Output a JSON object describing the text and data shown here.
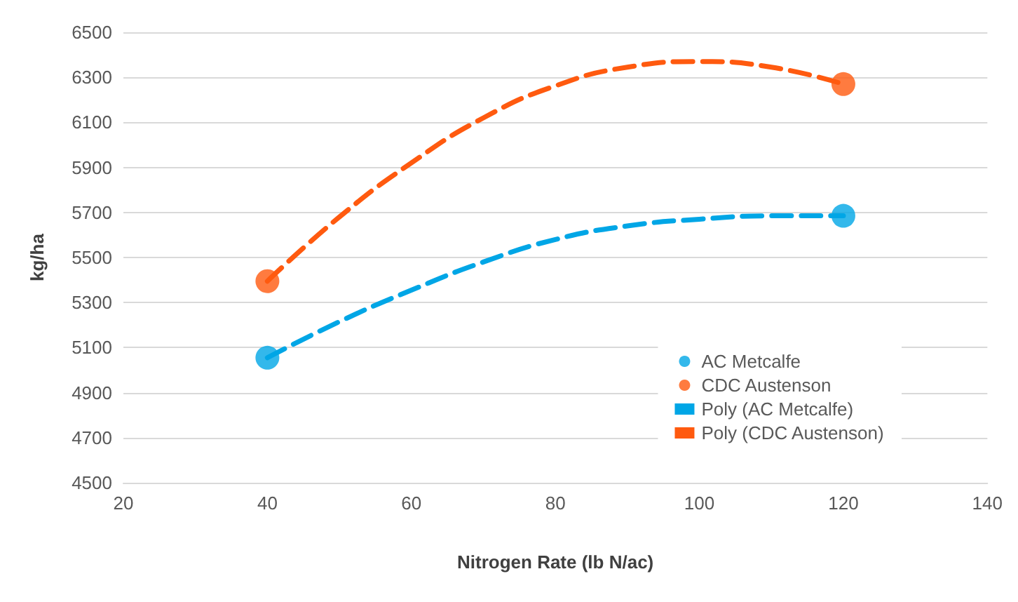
{
  "chart_data": {
    "type": "scatter",
    "xlabel": "Nitrogen Rate (lb N/ac)",
    "ylabel": "kg/ha",
    "xlim": [
      20,
      140
    ],
    "xticks": [
      20,
      40,
      60,
      80,
      100,
      120,
      140
    ],
    "ylim": [
      4500,
      6500
    ],
    "yticks": [
      4500,
      4700,
      4900,
      5100,
      5300,
      5500,
      5700,
      5900,
      6100,
      6300,
      6500
    ],
    "grid": "y",
    "legend": "right",
    "marker": "circle",
    "series": [
      {
        "name": "AC Metcalfe",
        "color": "#00a6e6",
        "x": [
          40,
          120
        ],
        "values": [
          5055,
          5685
        ]
      },
      {
        "name": "CDC Austenson",
        "color": "#ff5a0f",
        "x": [
          40,
          120
        ],
        "values": [
          5395,
          6270
        ]
      },
      {
        "name": "Poly (AC Metcalfe)",
        "type": "line",
        "marker": "none",
        "line_style": "dashed",
        "color": "#00a6e6",
        "x": [
          40,
          50,
          60,
          70,
          80,
          90,
          100,
          110,
          120
        ],
        "values": [
          5055,
          5215,
          5355,
          5480,
          5580,
          5640,
          5670,
          5685,
          5685
        ]
      },
      {
        "name": "Poly (CDC Austenson)",
        "type": "line",
        "marker": "none",
        "line_style": "dashed",
        "color": "#ff5a0f",
        "x": [
          40,
          50,
          60,
          70,
          80,
          90,
          100,
          110,
          120
        ],
        "values": [
          5395,
          5680,
          5920,
          6120,
          6262,
          6345,
          6370,
          6345,
          6270
        ]
      }
    ]
  }
}
